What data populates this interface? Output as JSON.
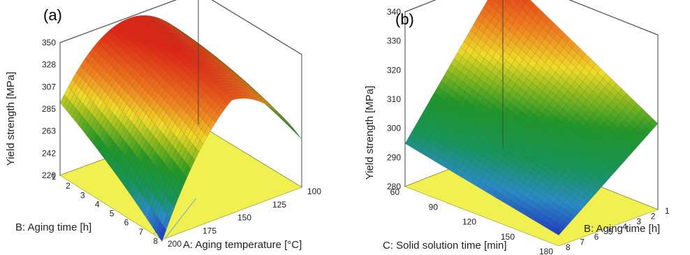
{
  "chart_data": [
    {
      "type": "surface",
      "panel_label": "(a)",
      "zlabel": "Yield strength [MPa]",
      "xlabel": "A: Aging temperature [°C]",
      "ylabel": "B: Aging time [h]",
      "z_ticks": [
        "220",
        "242",
        "263",
        "285",
        "307",
        "328",
        "350"
      ],
      "x_ticks": [
        "100",
        "125",
        "150",
        "175",
        "200"
      ],
      "y_ticks": [
        "1",
        "2",
        "3",
        "4",
        "5",
        "6",
        "7",
        "8"
      ],
      "zlim": [
        220,
        350
      ],
      "xlim": [
        100,
        200
      ],
      "ylim": [
        1,
        8
      ],
      "surface": {
        "description_model": "quadratic",
        "corners": {
          "t100_h1": 288,
          "t200_h1": 300,
          "t200_h8": 222,
          "t100_h8": 290
        },
        "peak": {
          "aging_temperature": 150,
          "aging_time": 1,
          "yield_strength": 349
        }
      },
      "floor_color": "#f0f050"
    },
    {
      "type": "surface",
      "panel_label": "(b)",
      "zlabel": "Yield strength [MPa]",
      "xlabel": "C: Solid solution time [min]",
      "ylabel": "B: Aging time [h]",
      "z_ticks": [
        "280",
        "290",
        "300",
        "310",
        "320",
        "330",
        "340"
      ],
      "x_ticks": [
        "60",
        "90",
        "120",
        "150",
        "180"
      ],
      "y_ticks": [
        "1",
        "2",
        "3",
        "4",
        "5",
        "6",
        "7",
        "8"
      ],
      "zlim": [
        280,
        345
      ],
      "xlim": [
        60,
        180
      ],
      "ylim": [
        1,
        8
      ],
      "surface": {
        "description_model": "bilinear",
        "corners": {
          "min60_h1": 345,
          "min180_h1": 312,
          "min60_h8": 296,
          "min180_h8": 284
        }
      },
      "floor_color": "#f0f050"
    }
  ]
}
